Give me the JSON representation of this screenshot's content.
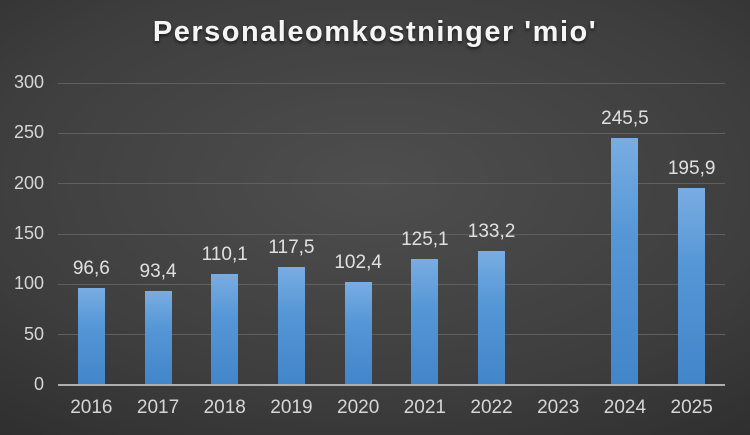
{
  "chart_data": {
    "type": "bar",
    "title": "Personaleomkostninger 'mio'",
    "categories": [
      "2016",
      "2017",
      "2018",
      "2019",
      "2020",
      "2021",
      "2022",
      "2023",
      "2024",
      "2025"
    ],
    "values": [
      96.6,
      93.4,
      110.1,
      117.5,
      102.4,
      125.1,
      133.2,
      null,
      245.5,
      195.9
    ],
    "value_labels": [
      "96,6",
      "93,4",
      "110,1",
      "117,5",
      "102,4",
      "125,1",
      "133,2",
      "",
      "245,5",
      "195,9"
    ],
    "xlabel": "",
    "ylabel": "",
    "ylim": [
      0,
      300
    ],
    "ytick_step": 50,
    "yticks": [
      "0",
      "50",
      "100",
      "150",
      "200",
      "250",
      "300"
    ],
    "grid": true,
    "legend": false
  },
  "style": {
    "background_center": "#4e4e4e",
    "background_edge": "#1c1c1c",
    "bar_top": "#79ade2",
    "bar_bottom": "#4285c9",
    "gridline": "#5f5f5f",
    "axis_line": "#aeaeae",
    "label_color": "#d6d6d6",
    "title_color": "#f5f5f5"
  }
}
